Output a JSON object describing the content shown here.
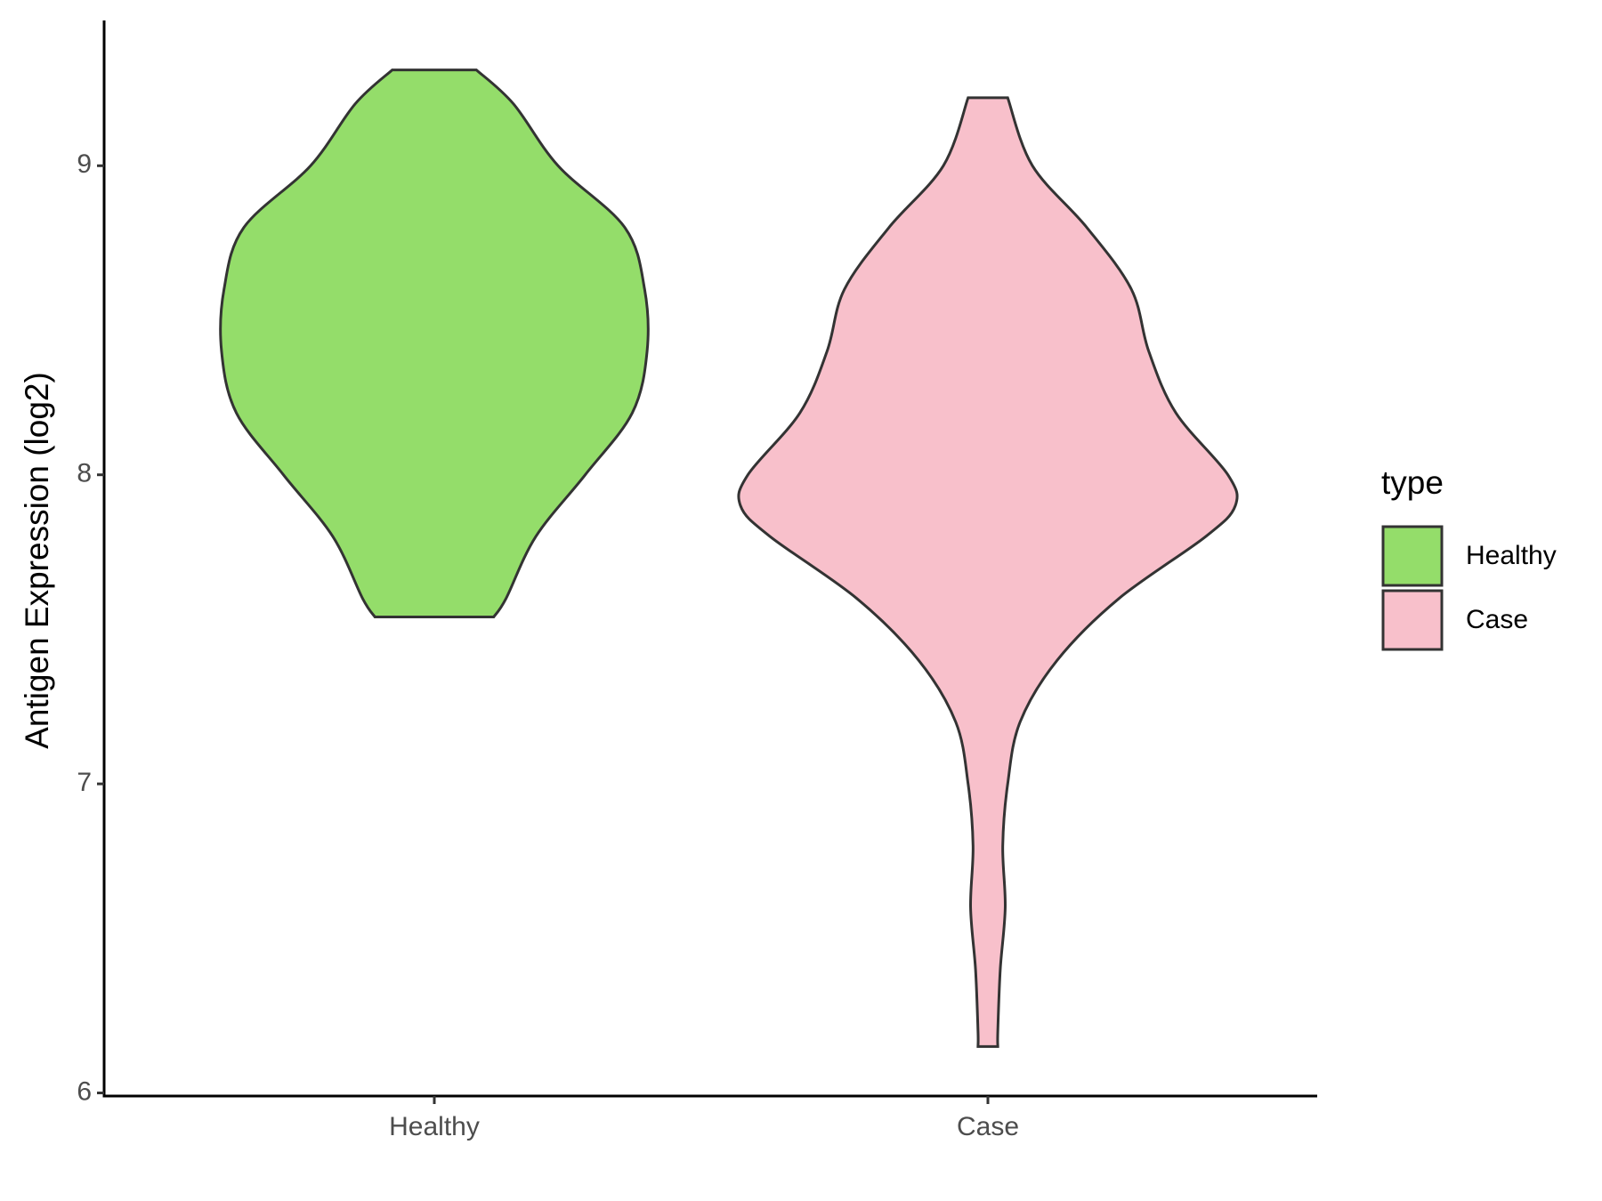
{
  "chart_data": {
    "type": "violin",
    "y_label": "Antigen Expression (log2)",
    "categories": [
      "Healthy",
      "Case"
    ],
    "violins": [
      {
        "y": [
          9.31,
          9.2,
          9.0,
          8.8,
          8.6,
          8.4,
          8.2,
          8.0,
          7.8,
          7.6,
          7.54
        ],
        "density": [
          0.17,
          0.32,
          0.5,
          0.77,
          0.85,
          0.86,
          0.8,
          0.61,
          0.41,
          0.29,
          0.24
        ]
      },
      {
        "y": [
          9.22,
          9.0,
          8.8,
          8.6,
          8.4,
          8.2,
          8.0,
          7.9,
          7.8,
          7.6,
          7.4,
          7.2,
          7.0,
          6.8,
          6.6,
          6.4,
          6.2,
          6.15
        ],
        "density": [
          0.08,
          0.18,
          0.4,
          0.58,
          0.65,
          0.76,
          0.97,
          1.0,
          0.88,
          0.53,
          0.28,
          0.13,
          0.08,
          0.06,
          0.07,
          0.05,
          0.04,
          0.04
        ]
      }
    ],
    "legend": {
      "title": "type",
      "position": "right",
      "series": [
        {
          "name": "Healthy",
          "color": "#94dd6a"
        },
        {
          "name": "Case",
          "color": "#f8c0cb"
        }
      ]
    },
    "ylim": [
      5.99,
      9.47
    ],
    "yticks": [
      6,
      7,
      8,
      9
    ],
    "grid": false
  }
}
